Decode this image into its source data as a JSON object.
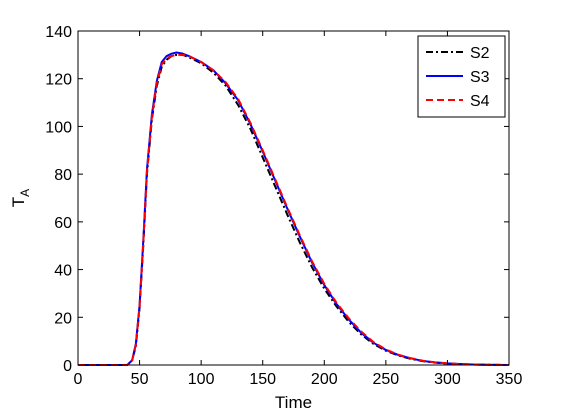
{
  "chart_data": {
    "type": "line",
    "title": "",
    "xlabel": "Time",
    "ylabel": {
      "main": "T",
      "sub": "A"
    },
    "xlim": [
      0,
      350
    ],
    "ylim": [
      0,
      140
    ],
    "xticks": [
      0,
      50,
      100,
      150,
      200,
      250,
      300,
      350
    ],
    "yticks": [
      0,
      20,
      40,
      60,
      80,
      100,
      120,
      140
    ],
    "grid": false,
    "legend_position": "top-right",
    "series": [
      {
        "name": "S2",
        "color": "#000000",
        "style": "dash-dot",
        "x": [
          0,
          40,
          44,
          47,
          50,
          53,
          56,
          60,
          64,
          68,
          72,
          76,
          80,
          85,
          90,
          100,
          110,
          120,
          130,
          140,
          150,
          160,
          170,
          180,
          190,
          200,
          210,
          220,
          230,
          240,
          250,
          260,
          270,
          280,
          290,
          300,
          310,
          320,
          330,
          340,
          350
        ],
        "y": [
          0,
          0,
          2,
          8,
          24,
          50,
          80,
          103,
          117,
          125,
          128,
          129.5,
          130,
          130,
          129,
          126.5,
          122.5,
          117,
          109,
          99,
          87,
          75,
          63,
          51.5,
          41,
          32,
          24.5,
          18,
          12.8,
          8.8,
          6,
          4,
          2.6,
          1.6,
          1,
          0.6,
          0.4,
          0.2,
          0.1,
          0.05,
          0
        ]
      },
      {
        "name": "S3",
        "color": "#0000ff",
        "style": "solid",
        "x": [
          0,
          40,
          44,
          47,
          50,
          53,
          56,
          60,
          64,
          68,
          72,
          76,
          80,
          85,
          90,
          100,
          110,
          120,
          130,
          140,
          150,
          160,
          170,
          180,
          190,
          200,
          210,
          220,
          230,
          240,
          250,
          260,
          270,
          280,
          290,
          300,
          310,
          320,
          330,
          340,
          350
        ],
        "y": [
          0,
          0,
          2,
          9,
          25,
          52,
          82,
          105,
          119,
          127,
          129.5,
          130.5,
          131,
          130.5,
          129.5,
          127,
          123.5,
          118,
          111,
          101,
          89.5,
          77.5,
          65.5,
          54,
          43,
          33.5,
          25.5,
          19,
          13.5,
          9.3,
          6.3,
          4.2,
          2.8,
          1.7,
          1.1,
          0.7,
          0.4,
          0.2,
          0.1,
          0.05,
          0
        ]
      },
      {
        "name": "S4",
        "color": "#ff0000",
        "style": "dashed",
        "x": [
          0,
          40,
          44,
          47,
          50,
          53,
          56,
          60,
          64,
          68,
          72,
          76,
          80,
          85,
          90,
          100,
          110,
          120,
          130,
          140,
          150,
          160,
          170,
          180,
          190,
          200,
          210,
          220,
          230,
          240,
          250,
          260,
          270,
          280,
          290,
          300,
          310,
          320,
          330,
          340,
          350
        ],
        "y": [
          0,
          0,
          2,
          8.5,
          24.5,
          51,
          81,
          104,
          118,
          126,
          128.5,
          129.5,
          130,
          130,
          129.5,
          127,
          123.5,
          118.5,
          111.5,
          101.5,
          90,
          78,
          66,
          54.5,
          43.5,
          34,
          26,
          19.5,
          14,
          9.6,
          6.5,
          4.3,
          2.9,
          1.8,
          1.1,
          0.7,
          0.4,
          0.2,
          0.1,
          0.05,
          0
        ]
      }
    ]
  }
}
